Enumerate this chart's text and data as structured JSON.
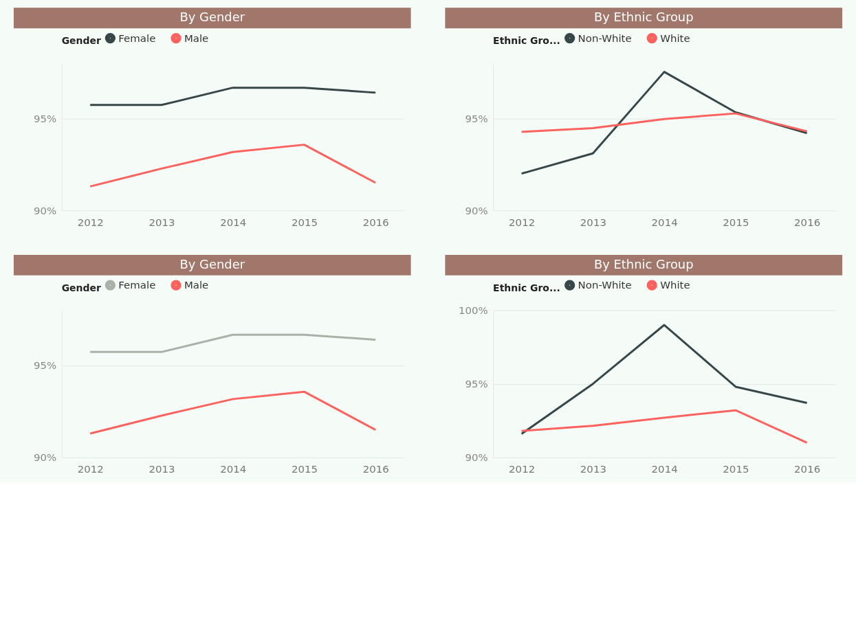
{
  "chart_data": [
    {
      "type": "line",
      "title": "By Gender",
      "legend_title": "Gender",
      "legend": "top left",
      "grid": "y",
      "categories": [
        "2012",
        "2013",
        "2014",
        "2015",
        "2016"
      ],
      "ylim": [
        90,
        98
      ],
      "yticks": [
        {
          "value": 90,
          "label": "90%"
        },
        {
          "value": 95,
          "label": "95%"
        }
      ],
      "series": [
        {
          "name": "Female",
          "color": "#374649",
          "values": [
            95.73,
            95.73,
            96.67,
            96.67,
            96.4
          ]
        },
        {
          "name": "Male",
          "color": "#fd625e",
          "values": [
            91.3,
            92.27,
            93.17,
            93.57,
            91.5
          ]
        }
      ]
    },
    {
      "type": "line",
      "title": "By Ethnic Group",
      "legend_title": "Ethnic Gro...",
      "legend": "top left",
      "grid": "y",
      "categories": [
        "2012",
        "2013",
        "2014",
        "2015",
        "2016"
      ],
      "ylim": [
        90,
        98
      ],
      "yticks": [
        {
          "value": 90,
          "label": "90%"
        },
        {
          "value": 95,
          "label": "95%"
        }
      ],
      "series": [
        {
          "name": "Non-White",
          "color": "#374649",
          "values": [
            92.0,
            93.1,
            97.53,
            95.33,
            94.2
          ]
        },
        {
          "name": "White",
          "color": "#fd625e",
          "values": [
            94.27,
            94.47,
            94.97,
            95.27,
            94.3
          ]
        }
      ]
    },
    {
      "type": "line",
      "title": "By Gender",
      "legend_title": "Gender",
      "legend": "top left",
      "grid": "y",
      "categories": [
        "2012",
        "2013",
        "2014",
        "2015",
        "2016"
      ],
      "ylim": [
        90,
        98
      ],
      "yticks": [
        {
          "value": 90,
          "label": "90%"
        },
        {
          "value": 95,
          "label": "95%"
        }
      ],
      "series": [
        {
          "name": "Female",
          "color": "#a9b1a9",
          "values": [
            95.73,
            95.73,
            96.67,
            96.67,
            96.4
          ]
        },
        {
          "name": "Male",
          "color": "#fd625e",
          "values": [
            91.3,
            92.27,
            93.17,
            93.57,
            91.5
          ]
        }
      ]
    },
    {
      "type": "line",
      "title": "By Ethnic Group",
      "legend_title": "Ethnic Gro...",
      "legend": "top left",
      "grid": "y",
      "categories": [
        "2012",
        "2013",
        "2014",
        "2015",
        "2016"
      ],
      "ylim": [
        90,
        100
      ],
      "yticks": [
        {
          "value": 90,
          "label": "90%"
        },
        {
          "value": 95,
          "label": "95%"
        },
        {
          "value": 100,
          "label": "100%"
        }
      ],
      "series": [
        {
          "name": "Non-White",
          "color": "#374649",
          "values": [
            91.6,
            95.0,
            99.0,
            94.8,
            93.7
          ]
        },
        {
          "name": "White",
          "color": "#fd625e",
          "values": [
            91.8,
            92.15,
            92.7,
            93.2,
            91.0
          ]
        }
      ]
    }
  ]
}
